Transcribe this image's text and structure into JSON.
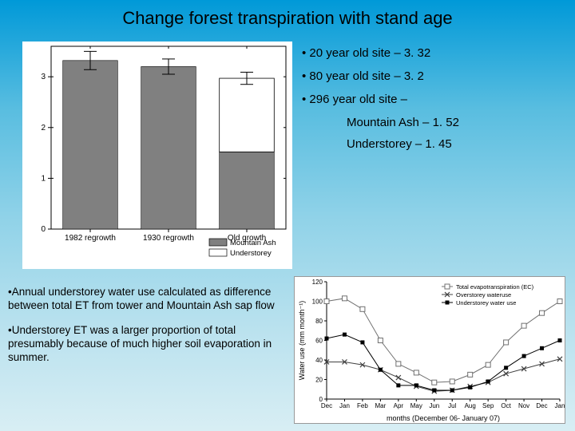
{
  "title": "Change forest transpiration with stand age",
  "bullets": {
    "b1": "• 20 year old site – 3. 32",
    "b2": "• 80 year old site – 3. 2",
    "b3": "• 296 year old site –",
    "b3a": "Mountain Ash – 1. 52",
    "b3b": "Understorey – 1. 45"
  },
  "notes": {
    "n1": "•Annual understorey water use calculated as difference between total ET from tower and Mountain Ash sap flow",
    "n2": "•Understorey ET was a larger proportion of total presumably because of much higher soil evaporation in summer."
  },
  "bar_chart": {
    "categories": [
      "1982 regrowth",
      "1930 regrowth",
      "Old growth"
    ],
    "series": [
      {
        "name": "Mountain Ash",
        "values": [
          3.32,
          3.2,
          1.52
        ],
        "color": "#808080"
      },
      {
        "name": "Understorey",
        "values": [
          null,
          null,
          1.45
        ],
        "color": "#ffffff"
      }
    ],
    "errors": [
      0.18,
      0.15,
      0.12
    ],
    "ylim": [
      0,
      3.6
    ],
    "yticks": [
      0,
      1,
      2,
      3
    ],
    "axis_color": "#000",
    "tick_fontsize": 10,
    "legend_labels": [
      "Mountain Ash",
      "Understorey"
    ],
    "bar_width": 0.7,
    "background": "#ffffff"
  },
  "line_chart": {
    "ylabel": "Water use (mm month⁻¹)",
    "xlabel": "months (December 06- January 07)",
    "xticks": [
      "Dec",
      "Jan",
      "Feb",
      "Mar",
      "Apr",
      "May",
      "Jun",
      "Jul",
      "Aug",
      "Sep",
      "Oct",
      "Nov",
      "Dec",
      "Jan"
    ],
    "ylim": [
      0,
      120
    ],
    "yticks": [
      0,
      20,
      40,
      60,
      80,
      100,
      120
    ],
    "series": [
      {
        "name": "Total evapotranspiration (EC)",
        "marker": "square-open",
        "color": "#707070",
        "values": [
          100,
          103,
          92,
          60,
          36,
          27,
          17,
          18,
          25,
          35,
          58,
          75,
          88,
          100
        ]
      },
      {
        "name": "Overstorey wateruse",
        "marker": "x",
        "color": "#404040",
        "values": [
          38,
          38,
          35,
          30,
          22,
          13,
          8,
          9,
          13,
          17,
          26,
          31,
          36,
          41
        ]
      },
      {
        "name": "Understorey water use",
        "marker": "square-filled",
        "color": "#000000",
        "values": [
          62,
          66,
          58,
          30,
          14,
          14,
          9,
          9,
          12,
          18,
          32,
          44,
          52,
          60
        ]
      }
    ],
    "tick_fontsize": 8,
    "label_fontsize": 9,
    "legend_fontsize": 7.5,
    "background": "#ffffff",
    "axis_color": "#000"
  }
}
